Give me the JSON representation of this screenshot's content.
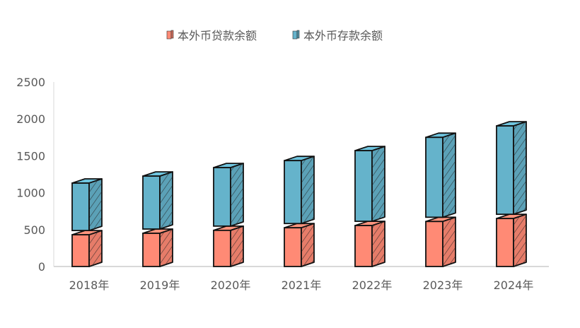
{
  "chart_data": {
    "type": "bar",
    "stacked": true,
    "style": "3d-hand-drawn",
    "categories": [
      "2018年",
      "2019年",
      "2020年",
      "2021年",
      "2022年",
      "2023年",
      "2024年"
    ],
    "series": [
      {
        "name": "本外币贷款余额",
        "color": "#FF8A75",
        "values": [
          430,
          450,
          490,
          525,
          555,
          610,
          650
        ]
      },
      {
        "name": "本外币存款余额",
        "color": "#65B3CB",
        "values": [
          700,
          775,
          850,
          910,
          1015,
          1140,
          1255
        ]
      }
    ],
    "ylim": [
      0,
      2500
    ],
    "yticks": [
      0,
      500,
      1000,
      1500,
      2000,
      2500
    ],
    "legend": "top-center",
    "grid": false
  }
}
